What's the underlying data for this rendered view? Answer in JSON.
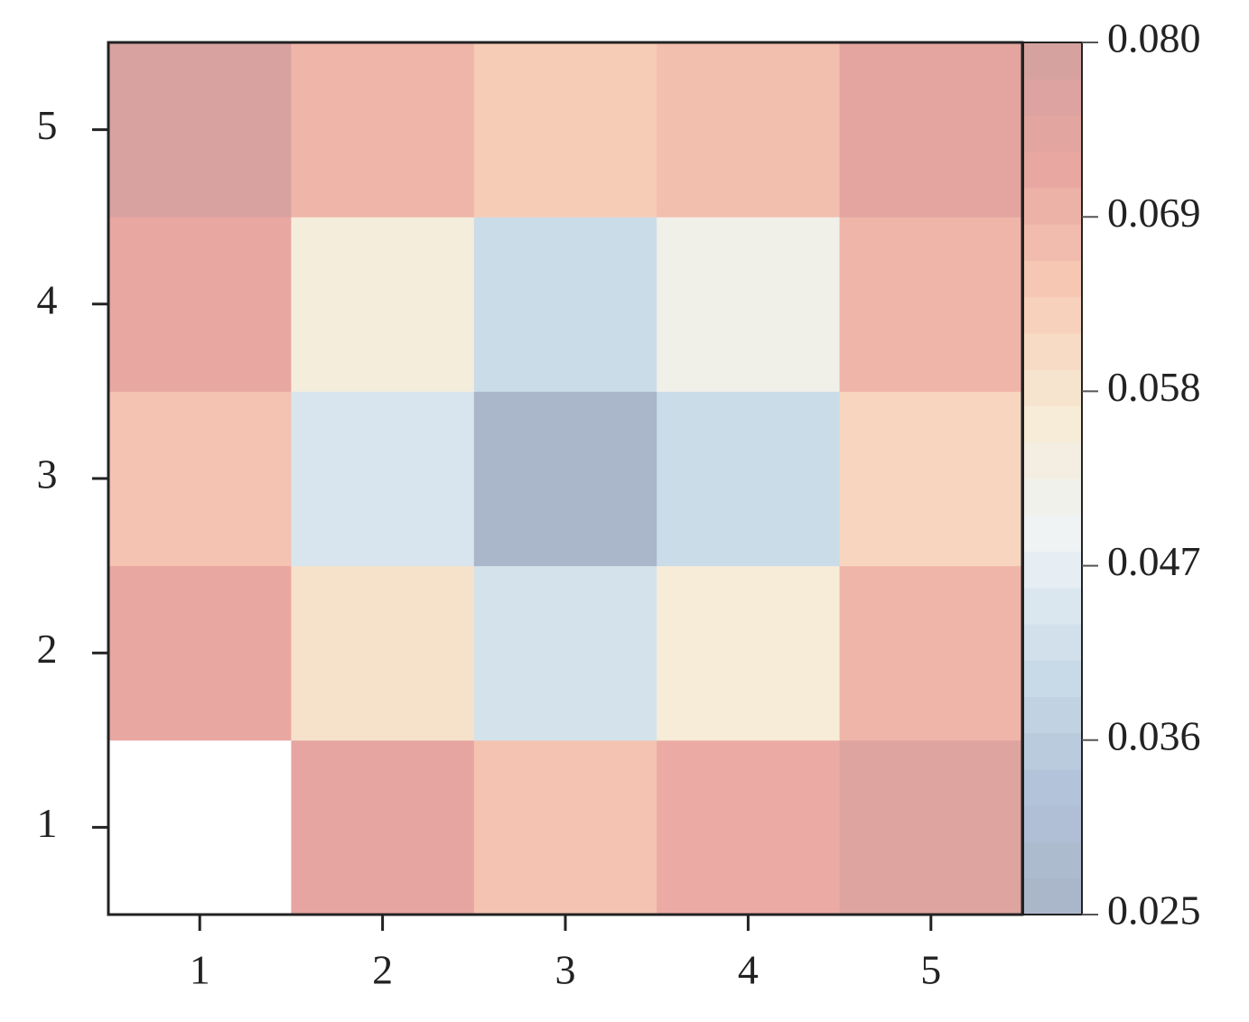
{
  "chart_data": {
    "type": "heatmap",
    "x_categories": [
      "1",
      "2",
      "3",
      "4",
      "5"
    ],
    "y_categories": [
      "1",
      "2",
      "3",
      "4",
      "5"
    ],
    "values": [
      [
        null,
        0.073,
        0.066,
        0.071,
        0.076
      ],
      [
        0.072,
        0.059,
        0.043,
        0.056,
        0.069
      ],
      [
        0.066,
        0.044,
        0.026,
        0.041,
        0.062
      ],
      [
        0.072,
        0.055,
        0.041,
        0.052,
        0.069
      ],
      [
        0.078,
        0.069,
        0.064,
        0.067,
        0.074
      ]
    ],
    "colormap": [
      "#a9b4c6",
      "#b3c3da",
      "#cadbe8",
      "#eef3f6",
      "#f6ecd6",
      "#f7cbb5",
      "#e9a6a1",
      "#d2a19f"
    ],
    "vlim": [
      0.025,
      0.08
    ],
    "cbar_ticks": [
      0.025,
      0.036,
      0.047,
      0.058,
      0.069,
      {
        "value": 0.08,
        "label": "0.080"
      }
    ]
  }
}
